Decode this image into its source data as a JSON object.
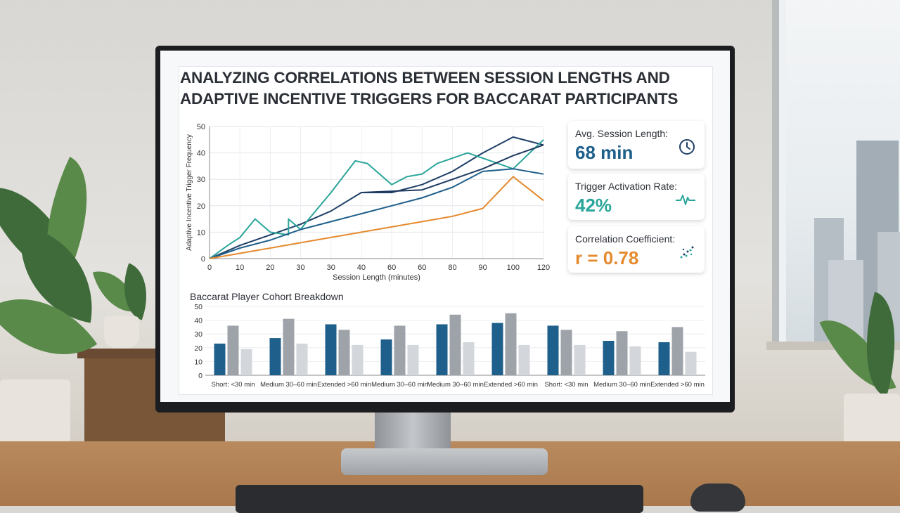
{
  "title": {
    "line1": "ANALYZING CORRELATIONS BETWEEN SESSION LENGTHS AND",
    "line2": "ADAPTIVE INCENTIVE TRIGGERS FOR BACCARAT PARTICIPANTS"
  },
  "kpis": [
    {
      "label": "Avg. Session Length:",
      "value": "68 min",
      "color": "#1f5f8b",
      "icon": "clock-icon"
    },
    {
      "label": "Trigger Activation Rate:",
      "value": "42%",
      "color": "#2aa59a",
      "icon": "pulse-icon"
    },
    {
      "label": "Correlation Coefficient:",
      "value": "r = 0.78",
      "color": "#e58a2e",
      "icon": "scatter-icon"
    }
  ],
  "chart_data": [
    {
      "type": "line",
      "xlabel": "Session Length (minutes)",
      "ylabel": "Adaptive Incentive Trigger Frequency",
      "x_ticks": [
        "0",
        "10",
        "20",
        "30",
        "30",
        "40",
        "60",
        "60",
        "80",
        "90",
        "100",
        "120"
      ],
      "ylim": [
        0,
        50
      ],
      "y_ticks": [
        0,
        10,
        20,
        30,
        40,
        50
      ],
      "grid": true,
      "series": [
        {
          "color": "#1f3f66",
          "points": [
            [
              0,
              0
            ],
            [
              1,
              5
            ],
            [
              2,
              9
            ],
            [
              3,
              13
            ],
            [
              4,
              18
            ],
            [
              5,
              25
            ],
            [
              6,
              25
            ],
            [
              7,
              28
            ],
            [
              8,
              33
            ],
            [
              9,
              40
            ],
            [
              10,
              46
            ],
            [
              11,
              43
            ]
          ]
        },
        {
          "color": "#2aa59a",
          "points": [
            [
              0,
              0
            ],
            [
              0.6,
              5
            ],
            [
              1,
              8
            ],
            [
              1.5,
              15
            ],
            [
              2,
              10
            ],
            [
              2.6,
              9
            ],
            [
              2.6,
              15
            ],
            [
              3,
              11
            ],
            [
              3.2,
              14
            ],
            [
              4,
              25
            ],
            [
              4.8,
              37
            ],
            [
              5.2,
              36
            ],
            [
              6,
              28
            ],
            [
              6.5,
              31
            ],
            [
              7,
              32
            ],
            [
              7.5,
              36
            ],
            [
              8,
              38
            ],
            [
              8.5,
              40
            ],
            [
              9,
              38
            ],
            [
              10,
              34
            ],
            [
              11,
              45
            ]
          ]
        },
        {
          "color": "#1f5f8b",
          "points": [
            [
              0,
              0
            ],
            [
              1,
              4
            ],
            [
              2,
              7
            ],
            [
              3,
              11
            ],
            [
              4,
              14
            ],
            [
              5,
              17
            ],
            [
              6,
              20
            ],
            [
              7,
              23
            ],
            [
              8,
              27
            ],
            [
              9,
              33
            ],
            [
              10,
              34
            ],
            [
              11,
              32
            ]
          ]
        },
        {
          "color": "#e58a2e",
          "points": [
            [
              0,
              0
            ],
            [
              1,
              2
            ],
            [
              2,
              4
            ],
            [
              3,
              6
            ],
            [
              4,
              8
            ],
            [
              5,
              10
            ],
            [
              6,
              12
            ],
            [
              7,
              14
            ],
            [
              8,
              16
            ],
            [
              9,
              19
            ],
            [
              10,
              31
            ],
            [
              11,
              22
            ]
          ]
        },
        {
          "color": "#1e3a5f",
          "points": [
            [
              5,
              25
            ],
            [
              7,
              26
            ],
            [
              9,
              34
            ],
            [
              10,
              39
            ],
            [
              11,
              43
            ]
          ]
        }
      ]
    },
    {
      "type": "bar",
      "title": "Baccarat Player Cohort Breakdown",
      "categories": [
        "Short: <30 min",
        "Medium 30–60 min",
        "Extended >60 min",
        "Medium 30–60 min",
        "Medium 30–60 min",
        "Extended >60 min",
        "Short: <30 min",
        "Medium 30–60 min",
        "Extended >60 min"
      ],
      "ylim": [
        0,
        50
      ],
      "y_ticks": [
        0,
        10,
        20,
        30,
        40,
        50
      ],
      "series": [
        {
          "color": "#1f5f8b",
          "values": [
            23,
            27,
            37,
            26,
            37,
            38,
            36,
            25,
            24
          ]
        },
        {
          "color": "#9ea3aa",
          "values": [
            36,
            41,
            33,
            36,
            44,
            45,
            33,
            32,
            35
          ]
        },
        {
          "color": "#d3d6da",
          "values": [
            19,
            23,
            22,
            22,
            24,
            22,
            22,
            21,
            17
          ]
        }
      ]
    }
  ]
}
